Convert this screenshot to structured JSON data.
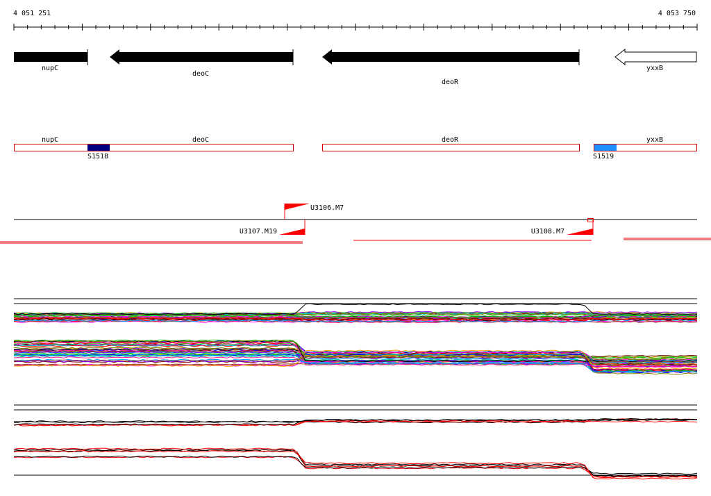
{
  "ruler": {
    "start_label": "4 051 251",
    "end_label": "4 053 750",
    "start": 4051251,
    "end": 4053750
  },
  "genes": [
    {
      "name": "nupC",
      "strand": "+",
      "filled": true,
      "start": 4051251,
      "end": 4051520
    },
    {
      "name": "deoC",
      "strand": "-",
      "filled": true,
      "start": 4051600,
      "end": 4052253
    },
    {
      "name": "deoR",
      "strand": "-",
      "filled": true,
      "start": 4052360,
      "end": 4053300
    },
    {
      "name": "yxxB",
      "strand": "-",
      "filled": false,
      "start": 4053425,
      "end": 4053750
    }
  ],
  "features": [
    {
      "name": "nupC",
      "start": 4051251,
      "end": 4052253
    },
    {
      "name": "deoC",
      "start": 4051251,
      "end": 4052253
    },
    {
      "name": "deoR",
      "start": 4052360,
      "end": 4053300
    },
    {
      "name": "yxxB",
      "start": 4053345,
      "end": 4053750
    }
  ],
  "segments": [
    {
      "name": "S1518",
      "start": 4051520,
      "end": 4051600,
      "color": "#000080"
    },
    {
      "name": "S1519",
      "start": 4053345,
      "end": 4053427,
      "color": "#1e90ff"
    }
  ],
  "transcripts": [
    {
      "name": "U3106.M7",
      "position": 4052240,
      "direction": "right"
    },
    {
      "name": "U3107.M19",
      "position": 4052293,
      "direction": "left"
    },
    {
      "name": "U3108.M7",
      "position": 4053347,
      "direction": "left"
    }
  ],
  "colors": {
    "gene": "#000000",
    "feature_outline": "#cc0000",
    "transcript": "#ff0000"
  }
}
